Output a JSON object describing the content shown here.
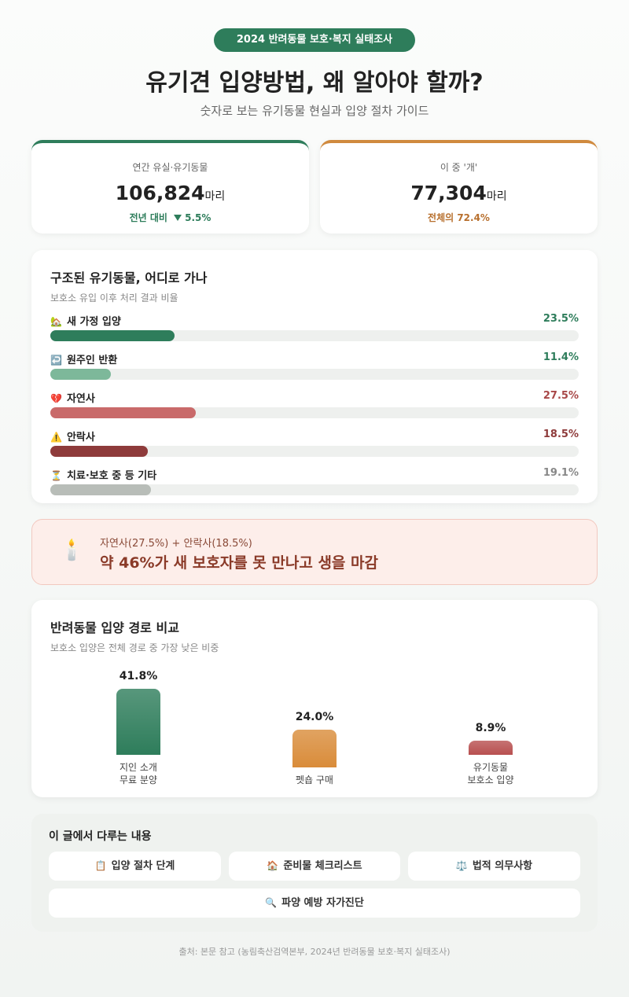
{
  "badge": "2024 반려동물 보호·복지 실태조사",
  "title": "유기견 입양방법, 왜 알아야 할까?",
  "subtitle": "숫자로 보는 유기동물 현실과 입양 절차 가이드",
  "stats": [
    {
      "label": "연간 유실·유기동물",
      "value": "106,824",
      "unit": "마리",
      "note": "전년 대비",
      "change": "5.5%",
      "color": "#2e7d5b"
    },
    {
      "label": "이 중 '개'",
      "value": "77,304",
      "unit": "마리",
      "note": "전체의 72.4%",
      "color": "#d08a3e"
    }
  ],
  "chart_data": [
    {
      "type": "hbar",
      "title": "구조된 유기동물, 어디로 가나",
      "subtitle": "보호소 유입 이후 처리 결과 비율",
      "icons": [
        "🏡",
        "↩️",
        "💔",
        "⚠️",
        "⏳"
      ],
      "categories": [
        "새 가정 입양",
        "원주인 반환",
        "자연사",
        "안락사",
        "치료·보호 중 등 기타"
      ],
      "values": [
        23.5,
        11.4,
        27.5,
        18.5,
        19.1
      ],
      "value_labels": [
        "23.5%",
        "11.4%",
        "27.5%",
        "18.5%",
        "19.1%"
      ],
      "colors": [
        "#2e7d5b",
        "#7db89a",
        "#c96a6a",
        "#8e3b3b",
        "#b8bdb8"
      ],
      "label_colors": [
        "#2e7d5b",
        "#2e7d5b",
        "#a84848",
        "#8e3b3b",
        "#888888"
      ],
      "xlim": [
        0,
        100
      ]
    },
    {
      "type": "bar",
      "title": "반려동물 입양 경로 비교",
      "subtitle": "보호소 입양은 전체 경로 중 가장 낮은 비중",
      "categories": [
        "지인 소개\n무료 분양",
        "펫숍 구매",
        "유기동물\n보호소 입양"
      ],
      "values": [
        41.8,
        24.0,
        8.9
      ],
      "value_labels": [
        "41.8%",
        "24.0%",
        "8.9%"
      ],
      "colors": [
        "#2e7d5b",
        "#d98c3a",
        "#b85050"
      ],
      "ylim": [
        0,
        50
      ]
    }
  ],
  "callout": {
    "icon": "🕯️",
    "line1": "자연사(27.5%) + 안락사(18.5%)",
    "line2": "약 46%가 새 보호자를 못 만나고 생을 마감"
  },
  "contents": {
    "title": "이 글에서 다루는 내용",
    "items": [
      {
        "icon": "📋",
        "label": "입양 절차 단계"
      },
      {
        "icon": "🏠",
        "label": "준비물 체크리스트"
      },
      {
        "icon": "⚖️",
        "label": "법적 의무사항"
      },
      {
        "icon": "🔍",
        "label": "파양 예방 자가진단"
      }
    ]
  },
  "source": "출처: 본문 참고 (농림축산검역본부, 2024년 반려동물 보호·복지 실태조사)"
}
